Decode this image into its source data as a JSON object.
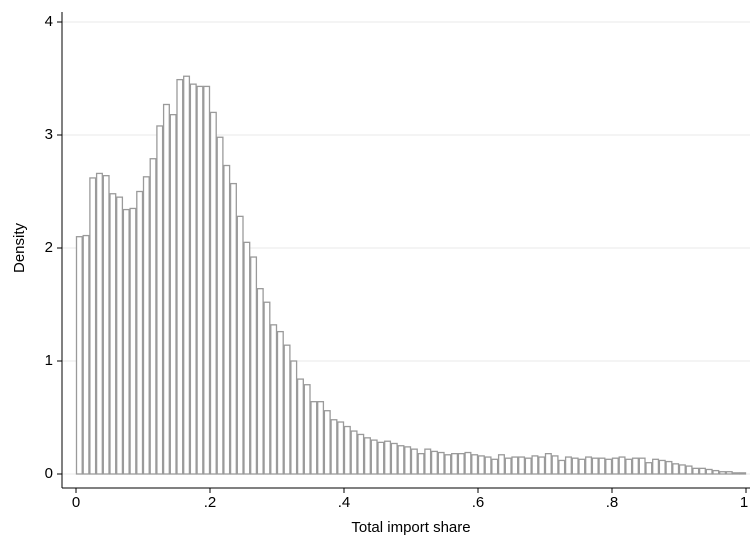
{
  "chart_data": {
    "type": "histogram",
    "xlabel": "Total import share",
    "ylabel": "Density",
    "bins": [
      0,
      0.01,
      0.02,
      0.03,
      0.04,
      0.05,
      0.06,
      0.07,
      0.08,
      0.09,
      0.1,
      0.11,
      0.12,
      0.13,
      0.14,
      0.15,
      0.16,
      0.17,
      0.18,
      0.19,
      0.2,
      0.21,
      0.22,
      0.23,
      0.24,
      0.25,
      0.26,
      0.27,
      0.28,
      0.29,
      0.3,
      0.31,
      0.32,
      0.33,
      0.34,
      0.35,
      0.36,
      0.37,
      0.38,
      0.39,
      0.4,
      0.41,
      0.42,
      0.43,
      0.44,
      0.45,
      0.46,
      0.47,
      0.48,
      0.49,
      0.5,
      0.51,
      0.52,
      0.53,
      0.54,
      0.55,
      0.56,
      0.57,
      0.58,
      0.59,
      0.6,
      0.61,
      0.62,
      0.63,
      0.64,
      0.65,
      0.66,
      0.67,
      0.68,
      0.69,
      0.7,
      0.71,
      0.72,
      0.73,
      0.74,
      0.75,
      0.76,
      0.77,
      0.78,
      0.79,
      0.8,
      0.81,
      0.82,
      0.83,
      0.84,
      0.85,
      0.86,
      0.87,
      0.88,
      0.89,
      0.9,
      0.91,
      0.92,
      0.93,
      0.94,
      0.95,
      0.96,
      0.97,
      0.98,
      0.99,
      1
    ],
    "values": [
      2.1,
      2.11,
      2.62,
      2.66,
      2.64,
      2.48,
      2.45,
      2.34,
      2.35,
      2.5,
      2.63,
      2.79,
      3.08,
      3.27,
      3.18,
      3.49,
      3.52,
      3.45,
      3.43,
      3.43,
      3.2,
      2.98,
      2.73,
      2.57,
      2.28,
      2.05,
      1.92,
      1.64,
      1.52,
      1.32,
      1.26,
      1.14,
      1.0,
      0.84,
      0.79,
      0.64,
      0.64,
      0.56,
      0.48,
      0.46,
      0.42,
      0.38,
      0.35,
      0.32,
      0.3,
      0.28,
      0.29,
      0.27,
      0.25,
      0.24,
      0.22,
      0.18,
      0.22,
      0.2,
      0.19,
      0.17,
      0.18,
      0.18,
      0.19,
      0.17,
      0.16,
      0.15,
      0.13,
      0.17,
      0.14,
      0.15,
      0.15,
      0.14,
      0.16,
      0.15,
      0.18,
      0.16,
      0.12,
      0.15,
      0.14,
      0.13,
      0.15,
      0.14,
      0.14,
      0.13,
      0.14,
      0.15,
      0.13,
      0.14,
      0.14,
      0.1,
      0.13,
      0.12,
      0.11,
      0.09,
      0.08,
      0.07,
      0.05,
      0.05,
      0.04,
      0.03,
      0.02,
      0.02,
      0.01,
      0.01
    ],
    "color": "#ffffff",
    "edgecolor": "#9a9a9a",
    "xlim": [
      0,
      1
    ],
    "xticks": [
      0,
      {
        "value": 0.2,
        "label": ".2"
      },
      {
        "value": 0.4,
        "label": ".4"
      },
      {
        "value": 0.6,
        "label": ".6"
      },
      {
        "value": 0.8,
        "label": ".8"
      },
      1
    ],
    "ylim": [
      0,
      4
    ],
    "yticks": [
      0,
      1,
      2,
      3,
      4
    ],
    "grid": true
  }
}
